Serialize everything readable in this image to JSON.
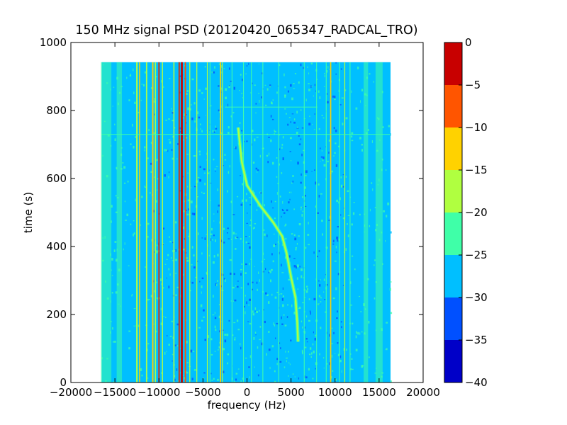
{
  "chart_data": {
    "type": "heatmap",
    "title": "150 MHz signal PSD (20120420_065347_RADCAL_TRO)",
    "xlabel": "frequency (Hz)",
    "ylabel": "time (s)",
    "xlim": [
      -20000,
      20000
    ],
    "ylim": [
      0,
      1000
    ],
    "xticks": [
      -20000,
      -15000,
      -10000,
      -5000,
      0,
      5000,
      10000,
      15000,
      20000
    ],
    "yticks": [
      0,
      200,
      400,
      600,
      800,
      1000
    ],
    "data_extent": {
      "x": [
        -16500,
        16300
      ],
      "y": [
        0,
        942
      ]
    },
    "colorbar": {
      "ticks": [
        0,
        -5,
        -10,
        -15,
        -20,
        -25,
        -30,
        -35,
        -40
      ],
      "levels": [
        {
          "range": [
            -40,
            -35
          ],
          "color": "#0000c8"
        },
        {
          "range": [
            -35,
            -30
          ],
          "color": "#0050ff"
        },
        {
          "range": [
            -30,
            -25
          ],
          "color": "#00bfff"
        },
        {
          "range": [
            -25,
            -20
          ],
          "color": "#3fffa8"
        },
        {
          "range": [
            -20,
            -15
          ],
          "color": "#b0ff40"
        },
        {
          "range": [
            -15,
            -10
          ],
          "color": "#ffd200"
        },
        {
          "range": [
            -10,
            -5
          ],
          "color": "#ff5500"
        },
        {
          "range": [
            -5,
            0
          ],
          "color": "#c80000"
        }
      ]
    },
    "background_level": -27,
    "carriers": [
      {
        "freq": -16000,
        "level": -22,
        "width": 1200
      },
      {
        "freq": -14500,
        "level": -24,
        "width": 600
      },
      {
        "freq": -12500,
        "level": -17,
        "width": 180
      },
      {
        "freq": -12200,
        "level": -12,
        "width": 120
      },
      {
        "freq": -11400,
        "level": -18,
        "width": 150
      },
      {
        "freq": -10700,
        "level": -12,
        "width": 160
      },
      {
        "freq": -10400,
        "level": -17,
        "width": 140
      },
      {
        "freq": -10000,
        "level": -8,
        "width": 140
      },
      {
        "freq": -9600,
        "level": -16,
        "width": 120
      },
      {
        "freq": -8300,
        "level": -18,
        "width": 130
      },
      {
        "freq": -7700,
        "level": -8,
        "width": 150
      },
      {
        "freq": -7400,
        "level": -3,
        "width": 220
      },
      {
        "freq": -7000,
        "level": -9,
        "width": 140
      },
      {
        "freq": -6500,
        "level": -17,
        "width": 120
      },
      {
        "freq": -5700,
        "level": -18,
        "width": 110
      },
      {
        "freq": -4500,
        "level": -18,
        "width": 110
      },
      {
        "freq": -4200,
        "level": -20,
        "width": 100
      },
      {
        "freq": -3000,
        "level": -13,
        "width": 150
      },
      {
        "freq": -2800,
        "level": -19,
        "width": 100
      },
      {
        "freq": -1700,
        "level": -21,
        "width": 90
      },
      {
        "freq": -400,
        "level": -22,
        "width": 90
      },
      {
        "freq": 500,
        "level": -22,
        "width": 90
      },
      {
        "freq": 1800,
        "level": -22,
        "width": 90
      },
      {
        "freq": 3600,
        "level": -21,
        "width": 90
      },
      {
        "freq": 6500,
        "level": -22,
        "width": 90
      },
      {
        "freq": 7900,
        "level": -21,
        "width": 90
      },
      {
        "freq": 9000,
        "level": -21,
        "width": 100
      },
      {
        "freq": 9500,
        "level": -14,
        "width": 140
      },
      {
        "freq": 10500,
        "level": -20,
        "width": 100
      },
      {
        "freq": 11100,
        "level": -19,
        "width": 110
      },
      {
        "freq": 11700,
        "level": -22,
        "width": 100
      },
      {
        "freq": 13500,
        "level": -23,
        "width": 500
      },
      {
        "freq": 15000,
        "level": -24,
        "width": 800
      }
    ],
    "drifting_signal": {
      "level": -17,
      "points": [
        {
          "time": 750,
          "freq": -1000
        },
        {
          "time": 650,
          "freq": -600
        },
        {
          "time": 580,
          "freq": 0
        },
        {
          "time": 520,
          "freq": 1500
        },
        {
          "time": 470,
          "freq": 3000
        },
        {
          "time": 430,
          "freq": 4000
        },
        {
          "time": 380,
          "freq": 4500
        },
        {
          "time": 310,
          "freq": 5000
        },
        {
          "time": 250,
          "freq": 5500
        },
        {
          "time": 180,
          "freq": 5700
        },
        {
          "time": 120,
          "freq": 5800
        }
      ]
    },
    "horizontal_lines": [
      {
        "time": 730,
        "level": -22,
        "freq_range": [
          -16500,
          16300
        ]
      },
      {
        "time": 810,
        "level": -22,
        "freq_range": [
          -2500,
          8000
        ]
      }
    ]
  }
}
